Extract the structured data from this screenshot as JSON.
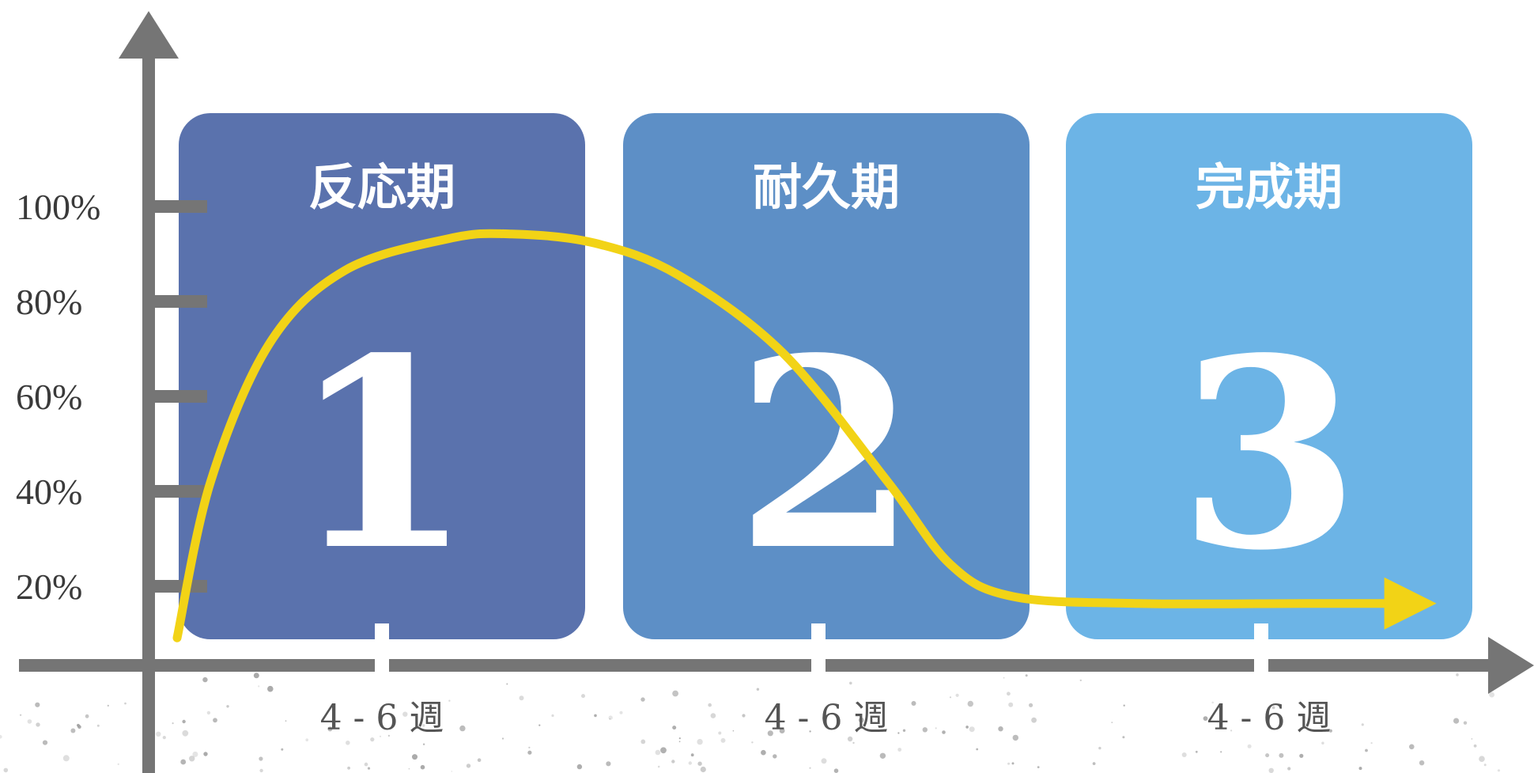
{
  "chart_data": {
    "type": "line",
    "phases": [
      {
        "title": "反応期",
        "number": "1",
        "duration": "4 - 6 週",
        "color": "#5a72ad"
      },
      {
        "title": "耐久期",
        "number": "2",
        "duration": "4 - 6 週",
        "color": "#5d8fc6"
      },
      {
        "title": "完成期",
        "number": "3",
        "duration": "4 - 6 週",
        "color": "#6cb4e6"
      }
    ],
    "y_ticks": [
      "20%",
      "40%",
      "60%",
      "80%",
      "100%"
    ],
    "ylim": [
      0,
      100
    ],
    "xlim": [
      0,
      3
    ],
    "series": [
      {
        "color": "#f2d316",
        "points": [
          [
            0.0,
            6
          ],
          [
            0.08,
            40
          ],
          [
            0.22,
            70
          ],
          [
            0.4,
            86
          ],
          [
            0.65,
            93
          ],
          [
            0.8,
            94
          ],
          [
            1.0,
            92
          ],
          [
            1.2,
            85
          ],
          [
            1.45,
            68
          ],
          [
            1.7,
            40
          ],
          [
            1.85,
            22
          ],
          [
            2.0,
            15
          ],
          [
            2.3,
            13.5
          ],
          [
            2.7,
            13.5
          ],
          [
            2.95,
            13.5
          ]
        ]
      }
    ],
    "axis_color": "#757575"
  }
}
